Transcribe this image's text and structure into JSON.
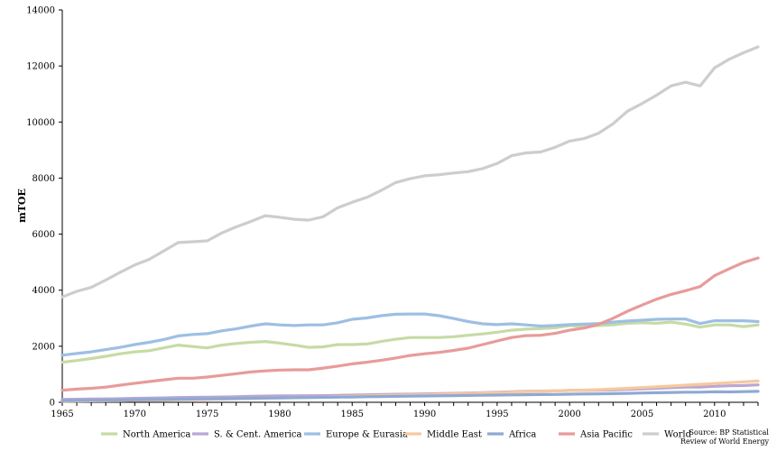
{
  "chart_data": {
    "type": "line",
    "ylabel": "mTOE",
    "ylim": [
      0,
      14000
    ],
    "xlim": [
      1965,
      2013
    ],
    "y_ticks": [
      "0",
      "2000",
      "4000",
      "6000",
      "8000",
      "10000",
      "12000",
      "14000"
    ],
    "x_ticks": [
      "1965",
      "1970",
      "1975",
      "1980",
      "1985",
      "1990",
      "1995",
      "2000",
      "2005",
      "2010"
    ],
    "grid": false,
    "legend_position": "bottom",
    "source": "Source: BP Statistical Review of World Energy",
    "x": [
      1965,
      1966,
      1967,
      1968,
      1969,
      1970,
      1971,
      1972,
      1973,
      1974,
      1975,
      1976,
      1977,
      1978,
      1979,
      1980,
      1981,
      1982,
      1983,
      1984,
      1985,
      1986,
      1987,
      1988,
      1989,
      1990,
      1991,
      1992,
      1993,
      1994,
      1995,
      1996,
      1997,
      1998,
      1999,
      2000,
      2001,
      2002,
      2003,
      2004,
      2005,
      2006,
      2007,
      2008,
      2009,
      2010,
      2011,
      2012,
      2013
    ],
    "series": [
      {
        "name": "North America",
        "color": "#c6dba5",
        "values": [
          1430,
          1490,
          1560,
          1640,
          1730,
          1800,
          1840,
          1940,
          2040,
          1990,
          1940,
          2040,
          2100,
          2140,
          2170,
          2110,
          2040,
          1960,
          1980,
          2060,
          2060,
          2080,
          2170,
          2250,
          2310,
          2310,
          2310,
          2340,
          2390,
          2440,
          2500,
          2570,
          2610,
          2630,
          2660,
          2740,
          2700,
          2740,
          2760,
          2820,
          2840,
          2820,
          2860,
          2790,
          2680,
          2760,
          2760,
          2700,
          2760
        ]
      },
      {
        "name": "S. & Cent. America",
        "color": "#b9a7d3",
        "values": [
          100,
          108,
          115,
          122,
          130,
          140,
          148,
          158,
          170,
          178,
          180,
          190,
          200,
          212,
          222,
          230,
          232,
          234,
          238,
          248,
          258,
          266,
          278,
          285,
          290,
          300,
          310,
          320,
          330,
          345,
          360,
          375,
          390,
          400,
          410,
          420,
          425,
          430,
          440,
          460,
          480,
          500,
          520,
          540,
          540,
          570,
          590,
          600,
          620
        ]
      },
      {
        "name": "Europe & Eurasia",
        "color": "#9dbfe3",
        "values": [
          1680,
          1740,
          1800,
          1880,
          1960,
          2060,
          2140,
          2240,
          2370,
          2420,
          2450,
          2550,
          2620,
          2720,
          2800,
          2760,
          2740,
          2760,
          2760,
          2840,
          2960,
          3010,
          3090,
          3140,
          3150,
          3150,
          3090,
          2990,
          2880,
          2800,
          2770,
          2800,
          2760,
          2720,
          2740,
          2770,
          2790,
          2810,
          2860,
          2900,
          2930,
          2960,
          2970,
          2970,
          2810,
          2910,
          2910,
          2910,
          2880
        ]
      },
      {
        "name": "Middle East",
        "color": "#f8c89e",
        "values": [
          40,
          45,
          50,
          55,
          62,
          70,
          76,
          82,
          90,
          96,
          104,
          115,
          122,
          135,
          145,
          155,
          165,
          175,
          185,
          200,
          215,
          225,
          240,
          255,
          265,
          270,
          285,
          300,
          315,
          330,
          345,
          360,
          375,
          390,
          405,
          420,
          435,
          450,
          475,
          500,
          525,
          550,
          580,
          610,
          640,
          670,
          700,
          730,
          760
        ]
      },
      {
        "name": "Africa",
        "color": "#8ea9d3",
        "values": [
          60,
          65,
          70,
          75,
          82,
          90,
          96,
          103,
          110,
          116,
          122,
          128,
          135,
          143,
          152,
          158,
          164,
          170,
          176,
          182,
          190,
          198,
          205,
          212,
          220,
          226,
          232,
          238,
          244,
          250,
          258,
          264,
          270,
          276,
          280,
          290,
          295,
          300,
          310,
          320,
          330,
          340,
          350,
          360,
          360,
          375,
          370,
          380,
          390
        ]
      },
      {
        "name": "Asia Pacific",
        "color": "#e79b9a",
        "values": [
          430,
          470,
          500,
          540,
          610,
          680,
          740,
          800,
          860,
          860,
          900,
          960,
          1020,
          1080,
          1120,
          1150,
          1160,
          1160,
          1220,
          1290,
          1370,
          1430,
          1500,
          1580,
          1670,
          1730,
          1780,
          1850,
          1930,
          2060,
          2190,
          2310,
          2380,
          2390,
          2460,
          2570,
          2650,
          2780,
          3000,
          3250,
          3470,
          3680,
          3850,
          3980,
          4130,
          4520,
          4760,
          4990,
          5150
        ]
      },
      {
        "name": "World",
        "color": "#cdcdcd",
        "values": [
          3760,
          3960,
          4100,
          4360,
          4640,
          4900,
          5100,
          5400,
          5700,
          5730,
          5760,
          6040,
          6260,
          6450,
          6660,
          6600,
          6530,
          6500,
          6620,
          6940,
          7140,
          7310,
          7560,
          7840,
          7980,
          8080,
          8120,
          8180,
          8230,
          8340,
          8520,
          8800,
          8900,
          8930,
          9100,
          9320,
          9410,
          9600,
          9940,
          10390,
          10660,
          10960,
          11290,
          11420,
          11290,
          11930,
          12240,
          12470,
          12680
        ]
      }
    ]
  }
}
